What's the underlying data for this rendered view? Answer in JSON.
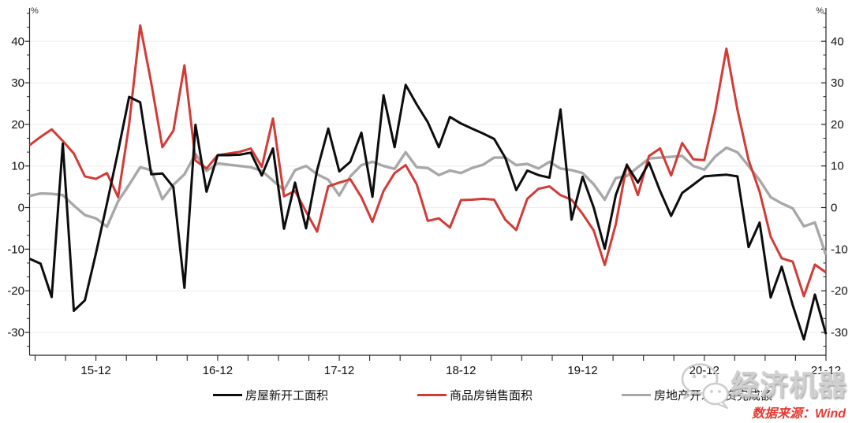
{
  "watermark": {
    "text": "经济机器",
    "icon": "wechat-icon"
  },
  "footer": {
    "source_label": "数据来源：Wind"
  },
  "chart_data": {
    "type": "line",
    "title": "",
    "y_unit": "%",
    "x_labels": [
      "15-12",
      "16-12",
      "17-12",
      "18-12",
      "19-12",
      "20-12",
      "21-12"
    ],
    "x_label_indices": [
      6,
      17,
      28,
      39,
      50,
      61,
      72
    ],
    "n_points": 73,
    "ylim": [
      -35.5,
      48
    ],
    "yticks": [
      -30,
      -20,
      -10,
      0,
      10,
      20,
      30,
      40
    ],
    "grid": "horizontal-only",
    "legend_position": "bottom-center",
    "axis_color": "#262626",
    "grid_color": "#ededed",
    "label_color": "#111111",
    "series": [
      {
        "name": "房屋新开工面积",
        "color": "#0d0d0d",
        "width": 3,
        "values": [
          -12.3,
          -13.5,
          -21.5,
          15.4,
          -24.8,
          -22.3,
          -11.0,
          1.0,
          13.5,
          26.6,
          25.3,
          8.0,
          8.2,
          4.9,
          -19.3,
          19.9,
          3.8,
          12.6,
          12.6,
          12.7,
          13.2,
          7.7,
          14.2,
          -5.1,
          6.0,
          -5.0,
          9.0,
          19.0,
          8.7,
          11.0,
          18.0,
          2.6,
          27.0,
          14.5,
          29.5,
          24.8,
          20.5,
          14.5,
          21.8,
          20.2,
          19.0,
          17.8,
          16.5,
          12.0,
          4.2,
          8.9,
          7.8,
          7.2,
          23.6,
          -2.9,
          7.4,
          0.0,
          -9.9,
          3.0,
          10.2,
          6.0,
          10.8,
          4.0,
          -2.0,
          3.5,
          5.5,
          7.5,
          7.7,
          7.9,
          7.5,
          -9.5,
          -3.6,
          -21.6,
          -14.2,
          -23.5,
          -31.7,
          -20.9,
          -30.4
        ]
      },
      {
        "name": "商品房销售面积",
        "color": "#d23b36",
        "width": 3,
        "values": [
          15.0,
          17.0,
          18.8,
          16.0,
          13.0,
          7.5,
          6.9,
          8.3,
          2.5,
          20.0,
          43.8,
          30.0,
          14.5,
          18.5,
          34.2,
          11.3,
          9.4,
          12.6,
          13.0,
          13.4,
          14.2,
          9.8,
          21.4,
          2.7,
          4.0,
          -1.0,
          -5.8,
          5.1,
          6.0,
          6.8,
          2.5,
          -3.4,
          4.0,
          8.3,
          10.2,
          5.6,
          -3.2,
          -2.6,
          -4.8,
          1.8,
          1.9,
          2.1,
          1.9,
          -2.9,
          -5.4,
          2.1,
          4.5,
          5.1,
          3.0,
          1.9,
          -1.5,
          -5.5,
          -13.8,
          -4.0,
          10.4,
          3.0,
          12.4,
          14.2,
          7.7,
          15.5,
          11.6,
          11.4,
          23.3,
          38.2,
          23.5,
          11.4,
          3.8,
          -7.0,
          -12.2,
          -13.0,
          -21.3,
          -13.7,
          -15.6
        ]
      },
      {
        "name": "房地产开发投资完成额",
        "color": "#a8a8a8",
        "width": 3.4,
        "values": [
          2.8,
          3.4,
          3.3,
          3.0,
          0.5,
          -1.8,
          -2.6,
          -4.6,
          1.5,
          5.5,
          9.7,
          9.0,
          2.0,
          5.5,
          8.0,
          12.9,
          8.8,
          10.6,
          10.3,
          10.0,
          9.7,
          8.8,
          6.5,
          4.2,
          9.0,
          10.0,
          8.0,
          6.7,
          2.9,
          7.5,
          10.2,
          11.0,
          10.0,
          9.3,
          13.3,
          9.7,
          9.5,
          7.8,
          8.9,
          8.3,
          9.5,
          10.3,
          12.0,
          12.0,
          10.2,
          10.5,
          9.4,
          11.0,
          9.4,
          9.0,
          8.3,
          5.6,
          1.9,
          7.1,
          7.6,
          9.7,
          11.8,
          12.0,
          12.2,
          12.4,
          10.0,
          9.1,
          12.3,
          14.4,
          13.3,
          10.0,
          6.6,
          2.5,
          1.0,
          -0.2,
          -4.5,
          -3.6,
          -11.4
        ]
      }
    ]
  }
}
